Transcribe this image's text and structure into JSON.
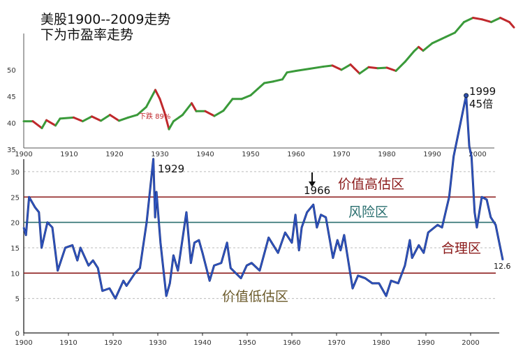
{
  "title_lines": [
    "美股1900--2009走势",
    "下为市盈率走势"
  ],
  "colors": {
    "up": "#3a9a3a",
    "down": "#c0282c",
    "pe_line": "#2f55c0",
    "high_line": "#8b1a1a",
    "risk_line": "#2a6f6f",
    "low_zone_text": "#6b5a2a"
  },
  "chart_data": [
    {
      "type": "line",
      "title": "美股1900--2009走势",
      "xlim": [
        1900,
        2009
      ],
      "ylim": [
        35,
        61
      ],
      "x_ticks": [
        "1900",
        "1910",
        "1920",
        "1930",
        "1940",
        "1950",
        "1960",
        "1970",
        "1980",
        "1990",
        "2000"
      ],
      "y_ticks": [
        "35",
        "40",
        "45",
        "50"
      ],
      "annotations": [
        {
          "text": "下跌 89%",
          "x": 1930
        }
      ],
      "x": [
        1900,
        1902,
        1904,
        1905,
        1907,
        1908,
        1911,
        1913,
        1915,
        1917,
        1919,
        1921,
        1923,
        1925,
        1927,
        1929,
        1930,
        1931,
        1932,
        1933,
        1935,
        1937,
        1938,
        1940,
        1942,
        1944,
        1946,
        1948,
        1950,
        1953,
        1955,
        1957,
        1958,
        1960,
        1963,
        1966,
        1968,
        1970,
        1972,
        1974,
        1976,
        1978,
        1980,
        1982,
        1984,
        1986,
        1987,
        1988,
        1990,
        1993,
        1995,
        1997,
        1999,
        2001,
        2003,
        2005,
        2007,
        2008
      ],
      "values": [
        40.3,
        40.3,
        39,
        40.5,
        39.5,
        40.8,
        41,
        40.3,
        41.2,
        40.4,
        41.5,
        40.4,
        41,
        41.5,
        43,
        46.2,
        44.5,
        42,
        38.8,
        40.3,
        41.5,
        43.7,
        42.2,
        42.2,
        41.3,
        42.3,
        44.5,
        44.5,
        45.2,
        47.5,
        47.8,
        48.2,
        49.5,
        49.8,
        50.2,
        50.6,
        50.8,
        50,
        51,
        49.3,
        50.5,
        50.3,
        50.4,
        49.8,
        51.5,
        53.5,
        54.3,
        53.6,
        55,
        56.2,
        57,
        59,
        59.8,
        59.5,
        59,
        59.8,
        59,
        58
      ]
    },
    {
      "type": "line",
      "title": "下为市盈率走势",
      "xlim": [
        1900,
        2009
      ],
      "ylim": [
        0,
        33
      ],
      "grid": true,
      "x_ticks": [
        "1900",
        "1910",
        "1920",
        "1930",
        "1940",
        "1950",
        "1960",
        "1970",
        "1980",
        "1990",
        "2000"
      ],
      "y_ticks": [
        "0",
        "5",
        "10",
        "15",
        "20",
        "25",
        "30"
      ],
      "reference_lines": [
        {
          "value": 25,
          "label": "价值高估区"
        },
        {
          "value": 20,
          "label": "风险区"
        },
        {
          "value": 10,
          "label": "合理区"
        }
      ],
      "zone_low_label": "价值低估区",
      "annotations": [
        {
          "text": "1929",
          "x": 1929,
          "y": 32.5
        },
        {
          "text": "1966",
          "x": 1966,
          "y": 23.5
        },
        {
          "text": "1999",
          "x": 1999,
          "y": 45
        },
        {
          "text": "45倍",
          "x": 1999,
          "y": 45
        },
        {
          "text": "12.6",
          "x": 2009,
          "y": 12.6
        }
      ],
      "x": [
        1900,
        1900.5,
        1901.2,
        1902.5,
        1903.4,
        1904,
        1905.3,
        1906.4,
        1907.6,
        1909.3,
        1910.9,
        1912,
        1912.7,
        1914.5,
        1915.5,
        1916.6,
        1917.6,
        1919.2,
        1920.5,
        1922.3,
        1923,
        1924.9,
        1926,
        1927.5,
        1929,
        1929.4,
        1929.7,
        1930.6,
        1931.9,
        1932.7,
        1933.5,
        1934.5,
        1936.4,
        1937.4,
        1938.2,
        1939.2,
        1940,
        1941.6,
        1942.6,
        1944.2,
        1945.5,
        1946.3,
        1948.6,
        1949.9,
        1951,
        1952.8,
        1954.8,
        1956.9,
        1958.5,
        1960,
        1960.8,
        1961.6,
        1962.2,
        1963.4,
        1964.8,
        1965.6,
        1966.5,
        1967.6,
        1969.2,
        1970.2,
        1970.9,
        1971.7,
        1973.6,
        1974.8,
        1976.4,
        1978,
        1979.5,
        1981.1,
        1982.2,
        1983.8,
        1985.3,
        1986.4,
        1986.9,
        1988.4,
        1989.5,
        1990.5,
        1992.6,
        1993.6,
        1994.4,
        1995.2,
        1996.2,
        1999,
        1999.7,
        2000.2,
        2000.9,
        2001.4,
        2002.5,
        2003.6,
        2004.5,
        2005.6,
        2007.2
      ],
      "values": [
        19,
        17.5,
        25,
        23,
        22,
        15,
        20,
        19,
        10.5,
        15,
        15.5,
        12.5,
        15,
        11.5,
        12.5,
        11,
        6.5,
        7,
        5,
        8.5,
        7.5,
        10,
        11,
        20,
        32.5,
        21,
        26,
        16,
        5.5,
        8,
        13.5,
        10.5,
        22,
        12,
        16,
        16.5,
        14,
        8.5,
        11.5,
        12,
        16,
        11,
        9,
        11.5,
        12,
        10.5,
        17,
        14,
        18,
        16,
        21.5,
        14.5,
        19,
        22,
        23.5,
        19,
        21.5,
        21,
        13,
        16.5,
        14.5,
        17.5,
        7,
        9.5,
        9,
        8,
        8,
        5.5,
        8.5,
        8,
        11.5,
        16.5,
        13,
        15.5,
        14,
        18,
        19.5,
        19,
        22,
        25,
        33,
        45,
        35,
        33,
        22,
        19,
        25,
        24.5,
        21,
        19.5,
        12.6
      ]
    }
  ]
}
